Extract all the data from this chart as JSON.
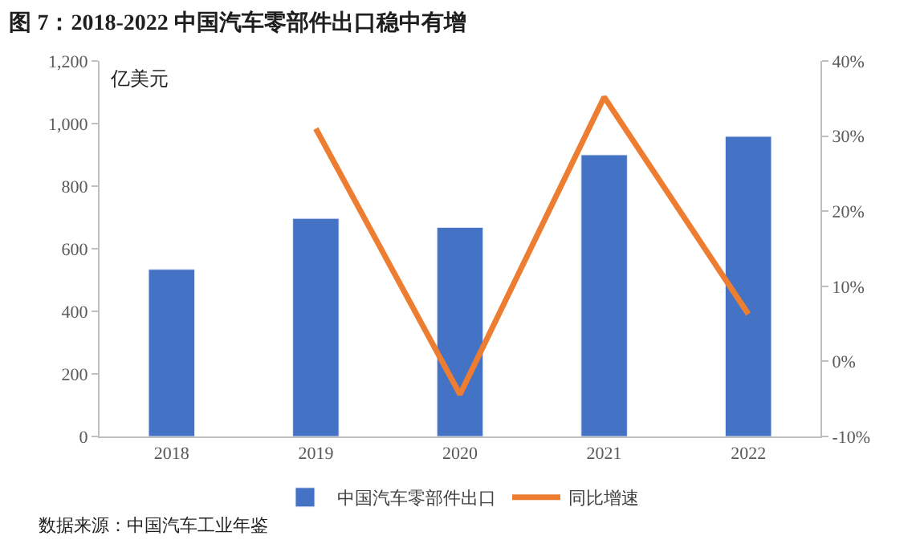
{
  "chart_data": {
    "type": "bar",
    "title": "图 7：2018-2022 中国汽车零部件出口稳中有增",
    "ylabel": "亿美元",
    "categories": [
      "2018",
      "2019",
      "2020",
      "2021",
      "2022"
    ],
    "series": [
      {
        "name": "中国汽车零部件出口",
        "color": "#4472c4",
        "values": [
          534,
          697,
          668,
          900,
          959
        ]
      },
      {
        "name": "同比增速",
        "type": "line",
        "axis": "y2",
        "color": "#ed7d31",
        "values": [
          null,
          31.0,
          -4.4,
          35.2,
          6.3
        ]
      }
    ],
    "ylim": [
      0,
      1200
    ],
    "yticks": [
      0,
      200,
      400,
      600,
      800,
      {
        "value": 1000,
        "label": "1,000"
      },
      {
        "value": 1200,
        "label": "1,200"
      }
    ],
    "y2lim": [
      -10,
      40
    ],
    "y2ticks": [
      {
        "value": -10,
        "label": "-10%"
      },
      {
        "value": 0,
        "label": "0%"
      },
      {
        "value": 10,
        "label": "10%"
      },
      {
        "value": 20,
        "label": "20%"
      },
      {
        "value": 30,
        "label": "30%"
      },
      {
        "value": 40,
        "label": "40%"
      }
    ],
    "legend": "bottom",
    "grid": false,
    "marker": "none",
    "annotations": [
      "数据来源：中国汽车工业年鉴"
    ]
  }
}
